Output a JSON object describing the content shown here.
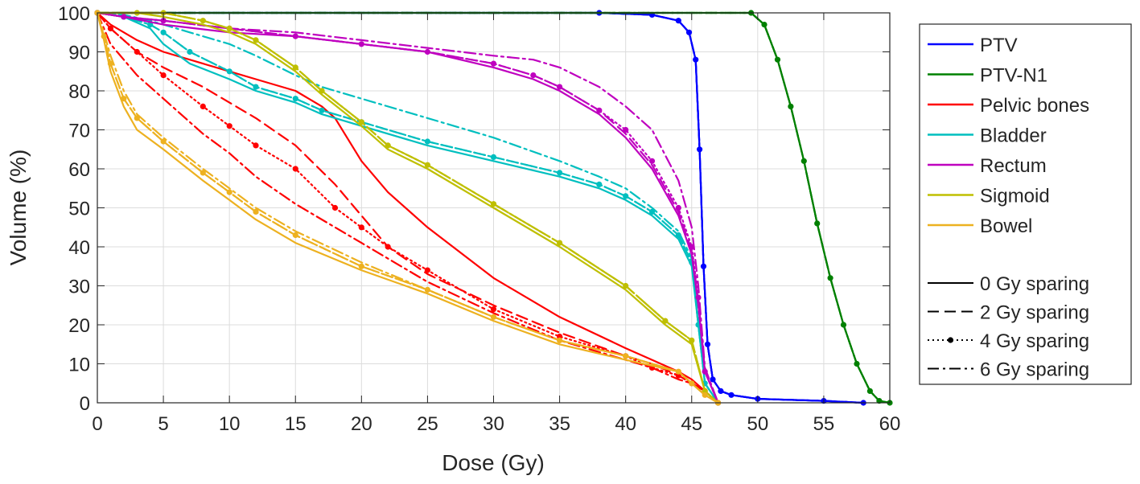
{
  "chart_data": {
    "type": "line",
    "title": "",
    "xlabel": "Dose (Gy)",
    "ylabel": "Volume (%)",
    "xlim": [
      0,
      60
    ],
    "ylim": [
      0,
      100
    ],
    "xticks": [
      0,
      5,
      10,
      15,
      20,
      25,
      30,
      35,
      40,
      45,
      50,
      55,
      60
    ],
    "yticks": [
      0,
      10,
      20,
      30,
      40,
      50,
      60,
      70,
      80,
      90,
      100
    ],
    "grid": true,
    "legend_position": "outside-right",
    "structures": [
      {
        "name": "PTV",
        "color": "#0000FF"
      },
      {
        "name": "PTV-N1",
        "color": "#008000"
      },
      {
        "name": "Pelvic bones",
        "color": "#FF0000"
      },
      {
        "name": "Bladder",
        "color": "#00BFBF"
      },
      {
        "name": "Rectum",
        "color": "#BF00BF"
      },
      {
        "name": "Sigmoid",
        "color": "#BFBF00"
      },
      {
        "name": "Bowel",
        "color": "#EDB120"
      }
    ],
    "sparing_styles": [
      {
        "name": "0 Gy sparing",
        "style": "solid"
      },
      {
        "name": "2 Gy sparing",
        "style": "dashed"
      },
      {
        "name": "4 Gy sparing",
        "style": "dotted-marker"
      },
      {
        "name": "6 Gy sparing",
        "style": "dashdot"
      }
    ],
    "series": [
      {
        "structure": "PTV",
        "sparing": "0 Gy sparing",
        "x": [
          0,
          38,
          42,
          44,
          44.8,
          45.3,
          45.6,
          45.9,
          46.2,
          46.6,
          47.2,
          48,
          50,
          55,
          58
        ],
        "y": [
          100,
          100,
          99.5,
          98,
          95,
          88,
          65,
          35,
          15,
          6,
          3,
          2,
          1,
          0.5,
          0
        ]
      },
      {
        "structure": "PTV",
        "sparing": "2 Gy sparing",
        "x": [
          0,
          38,
          42,
          44,
          44.8,
          45.3,
          45.6,
          45.9,
          46.2,
          46.6,
          47.2,
          48,
          50,
          55,
          58
        ],
        "y": [
          100,
          100,
          99.5,
          98,
          95,
          88,
          65,
          35,
          15,
          6,
          3,
          2,
          1,
          0.5,
          0
        ]
      },
      {
        "structure": "PTV",
        "sparing": "4 Gy sparing",
        "x": [
          0,
          38,
          42,
          44,
          44.8,
          45.3,
          45.6,
          45.9,
          46.2,
          46.6,
          47.2,
          48,
          50,
          55,
          58
        ],
        "y": [
          100,
          100,
          99.5,
          98,
          95,
          88,
          65,
          35,
          15,
          6,
          3,
          2,
          1,
          0.5,
          0
        ]
      },
      {
        "structure": "PTV",
        "sparing": "6 Gy sparing",
        "x": [
          0,
          38,
          42,
          44,
          44.8,
          45.3,
          45.6,
          45.9,
          46.2,
          46.6,
          47.2,
          48,
          50,
          55,
          58
        ],
        "y": [
          100,
          100,
          99.5,
          98,
          95,
          88,
          65,
          35,
          15,
          6,
          3,
          2,
          1,
          0.5,
          0
        ]
      },
      {
        "structure": "PTV-N1",
        "sparing": "0 Gy sparing",
        "x": [
          0,
          49.5,
          50.5,
          51.5,
          52.5,
          53.5,
          54.5,
          55.5,
          56.5,
          57.5,
          58.5,
          59.2,
          60
        ],
        "y": [
          100,
          100,
          97,
          88,
          76,
          62,
          46,
          32,
          20,
          10,
          3,
          0.5,
          0
        ]
      },
      {
        "structure": "PTV-N1",
        "sparing": "2 Gy sparing",
        "x": [
          0,
          49.5,
          50.5,
          51.5,
          52.5,
          53.5,
          54.5,
          55.5,
          56.5,
          57.5,
          58.5,
          59.2,
          60
        ],
        "y": [
          100,
          100,
          97,
          88,
          76,
          62,
          46,
          32,
          20,
          10,
          3,
          0.5,
          0
        ]
      },
      {
        "structure": "PTV-N1",
        "sparing": "4 Gy sparing",
        "x": [
          0,
          49.5,
          50.5,
          51.5,
          52.5,
          53.5,
          54.5,
          55.5,
          56.5,
          57.5,
          58.5,
          59.2,
          60
        ],
        "y": [
          100,
          100,
          97,
          88,
          76,
          62,
          46,
          32,
          20,
          10,
          3,
          0.5,
          0
        ]
      },
      {
        "structure": "PTV-N1",
        "sparing": "6 Gy sparing",
        "x": [
          0,
          49.5,
          50.5,
          51.5,
          52.5,
          53.5,
          54.5,
          55.5,
          56.5,
          57.5,
          58.5,
          59.2,
          60
        ],
        "y": [
          100,
          100,
          97,
          88,
          76,
          62,
          46,
          32,
          20,
          10,
          3,
          0.5,
          0
        ]
      },
      {
        "structure": "Pelvic bones",
        "sparing": "0 Gy sparing",
        "x": [
          0,
          1,
          3,
          5,
          8,
          10,
          12,
          15,
          17,
          18,
          20,
          22,
          25,
          30,
          35,
          40,
          42,
          44,
          45,
          46,
          47
        ],
        "y": [
          100,
          97,
          93,
          90,
          87,
          85,
          83,
          80,
          76,
          73,
          62,
          54,
          45,
          32,
          22,
          14,
          11,
          8,
          6,
          3,
          0
        ]
      },
      {
        "structure": "Pelvic bones",
        "sparing": "2 Gy sparing",
        "x": [
          0,
          1,
          3,
          5,
          8,
          10,
          12,
          15,
          18,
          20,
          22,
          25,
          30,
          35,
          40,
          42,
          44,
          45,
          46,
          47
        ],
        "y": [
          100,
          96,
          90,
          86,
          81,
          77,
          73,
          66,
          56,
          48,
          40,
          33,
          25,
          18,
          12,
          10,
          7,
          5,
          3,
          0
        ]
      },
      {
        "structure": "Pelvic bones",
        "sparing": "4 Gy sparing",
        "x": [
          0,
          1,
          3,
          5,
          8,
          10,
          12,
          15,
          18,
          20,
          22,
          25,
          30,
          35,
          40,
          42,
          44,
          45,
          46,
          47
        ],
        "y": [
          100,
          96,
          90,
          84,
          76,
          71,
          66,
          60,
          50,
          45,
          40,
          34,
          24,
          17,
          12,
          9,
          7,
          5,
          3,
          0
        ]
      },
      {
        "structure": "Pelvic bones",
        "sparing": "6 Gy sparing",
        "x": [
          0,
          1,
          3,
          5,
          8,
          10,
          12,
          15,
          18,
          20,
          22,
          25,
          30,
          35,
          40,
          42,
          44,
          45,
          46,
          47
        ],
        "y": [
          100,
          92,
          84,
          78,
          69,
          64,
          58,
          51,
          45,
          41,
          37,
          31,
          23,
          16,
          11,
          9,
          6,
          5,
          3,
          0
        ]
      },
      {
        "structure": "Bladder",
        "sparing": "0 Gy sparing",
        "x": [
          0,
          2,
          4,
          5,
          7,
          10,
          12,
          15,
          17,
          20,
          25,
          30,
          35,
          38,
          40,
          42,
          44,
          45,
          45.5,
          46,
          47
        ],
        "y": [
          100,
          99,
          96,
          92,
          87,
          83,
          80,
          77,
          74,
          71,
          66,
          62,
          58,
          55,
          52,
          48,
          42,
          35,
          20,
          5,
          0
        ]
      },
      {
        "structure": "Bladder",
        "sparing": "2 Gy sparing",
        "x": [
          0,
          2,
          4,
          5,
          7,
          10,
          12,
          15,
          17,
          20,
          25,
          30,
          35,
          38,
          40,
          42,
          44,
          45,
          45.5,
          46,
          47
        ],
        "y": [
          100,
          99,
          97,
          95,
          90,
          85,
          81,
          78,
          75,
          72,
          67,
          63,
          59,
          56,
          53,
          49,
          43,
          36,
          20,
          5,
          0
        ]
      },
      {
        "structure": "Bladder",
        "sparing": "4 Gy sparing",
        "x": [
          0,
          2,
          4,
          5,
          7,
          10,
          12,
          15,
          17,
          20,
          25,
          30,
          35,
          38,
          40,
          42,
          44,
          45,
          45.5,
          46,
          47
        ],
        "y": [
          100,
          99,
          97,
          95,
          90,
          85,
          81,
          78,
          75,
          72,
          67,
          63,
          59,
          56,
          53,
          49,
          43,
          36,
          20,
          5,
          0
        ]
      },
      {
        "structure": "Bladder",
        "sparing": "6 Gy sparing",
        "x": [
          0,
          2,
          4,
          5,
          7,
          10,
          12,
          15,
          17,
          20,
          25,
          30,
          35,
          38,
          40,
          42,
          44,
          45,
          45.5,
          46,
          47
        ],
        "y": [
          100,
          99.5,
          98,
          97,
          95,
          92,
          89,
          84,
          81,
          78,
          73,
          68,
          62,
          58,
          55,
          50,
          44,
          37,
          21,
          5,
          0
        ]
      },
      {
        "structure": "Rectum",
        "sparing": "0 Gy sparing",
        "x": [
          0,
          2,
          5,
          10,
          15,
          20,
          25,
          30,
          33,
          35,
          38,
          40,
          42,
          44,
          45,
          45.5,
          46,
          47
        ],
        "y": [
          100,
          99,
          97,
          95,
          94,
          92,
          90,
          86,
          83,
          80,
          74,
          68,
          60,
          48,
          38,
          25,
          8,
          0
        ]
      },
      {
        "structure": "Rectum",
        "sparing": "2 Gy sparing",
        "x": [
          0,
          2,
          5,
          10,
          15,
          20,
          25,
          30,
          33,
          35,
          38,
          40,
          42,
          44,
          45,
          45.5,
          46,
          47
        ],
        "y": [
          100,
          99,
          98,
          96,
          94,
          92,
          90,
          87,
          84,
          81,
          75,
          69,
          61,
          49,
          39,
          26,
          8,
          0
        ]
      },
      {
        "structure": "Rectum",
        "sparing": "4 Gy sparing",
        "x": [
          0,
          2,
          5,
          10,
          15,
          20,
          25,
          30,
          33,
          35,
          38,
          40,
          42,
          44,
          45,
          45.5,
          46,
          47
        ],
        "y": [
          100,
          99,
          98,
          96,
          94,
          92,
          90,
          87,
          84,
          81,
          75,
          70,
          62,
          50,
          40,
          27,
          8,
          0
        ]
      },
      {
        "structure": "Rectum",
        "sparing": "6 Gy sparing",
        "x": [
          0,
          2,
          5,
          10,
          15,
          20,
          25,
          30,
          33,
          35,
          38,
          40,
          42,
          44,
          45,
          45.5,
          46,
          47
        ],
        "y": [
          100,
          99,
          98,
          96,
          95,
          93,
          91,
          89,
          88,
          86,
          81,
          76,
          70,
          57,
          45,
          30,
          9,
          0
        ]
      },
      {
        "structure": "Sigmoid",
        "sparing": "0 Gy sparing",
        "x": [
          0,
          3,
          5,
          8,
          10,
          12,
          15,
          17,
          20,
          22,
          25,
          30,
          35,
          40,
          43,
          45,
          46,
          47
        ],
        "y": [
          100,
          100,
          99,
          97,
          95,
          92,
          85,
          79,
          71,
          65,
          60,
          50,
          40,
          29,
          20,
          15,
          3,
          0
        ]
      },
      {
        "structure": "Sigmoid",
        "sparing": "2 Gy sparing",
        "x": [
          0,
          3,
          5,
          8,
          10,
          12,
          15,
          17,
          20,
          22,
          25,
          30,
          35,
          40,
          43,
          45,
          46,
          47
        ],
        "y": [
          100,
          100,
          100,
          98,
          96,
          93,
          86,
          80,
          72,
          66,
          61,
          51,
          41,
          30,
          21,
          16,
          3,
          0
        ]
      },
      {
        "structure": "Sigmoid",
        "sparing": "4 Gy sparing",
        "x": [
          0,
          3,
          5,
          8,
          10,
          12,
          15,
          17,
          20,
          22,
          25,
          30,
          35,
          40,
          43,
          45,
          46,
          47
        ],
        "y": [
          100,
          100,
          100,
          98,
          96,
          93,
          86,
          80,
          72,
          66,
          61,
          51,
          41,
          30,
          21,
          16,
          3,
          0
        ]
      },
      {
        "structure": "Sigmoid",
        "sparing": "6 Gy sparing",
        "x": [
          0,
          3,
          5,
          8,
          10,
          12,
          15,
          17,
          20,
          22,
          25,
          30,
          35,
          40,
          43,
          45,
          46,
          47
        ],
        "y": [
          100,
          100,
          100,
          98,
          96,
          93,
          86,
          80,
          72,
          66,
          61,
          51,
          41,
          30,
          21,
          16,
          3,
          0
        ]
      },
      {
        "structure": "Bowel",
        "sparing": "0 Gy sparing",
        "x": [
          0,
          0.5,
          1,
          2,
          3,
          5,
          8,
          10,
          12,
          15,
          20,
          25,
          30,
          35,
          40,
          44,
          45,
          46,
          47
        ],
        "y": [
          100,
          93,
          85,
          76,
          70,
          65,
          57,
          52,
          47,
          41,
          34,
          28,
          21,
          15,
          11,
          8,
          5,
          2,
          0
        ]
      },
      {
        "structure": "Bowel",
        "sparing": "2 Gy sparing",
        "x": [
          0,
          0.5,
          1,
          2,
          3,
          5,
          8,
          10,
          12,
          15,
          20,
          25,
          30,
          35,
          40,
          44,
          45,
          46,
          47
        ],
        "y": [
          100,
          94,
          87,
          78,
          73,
          67,
          59,
          54,
          49,
          43,
          35,
          29,
          22,
          16,
          12,
          8,
          5,
          2,
          0
        ]
      },
      {
        "structure": "Bowel",
        "sparing": "4 Gy sparing",
        "x": [
          0,
          0.5,
          1,
          2,
          3,
          5,
          8,
          10,
          12,
          15,
          20,
          25,
          30,
          35,
          40,
          44,
          45,
          46,
          47
        ],
        "y": [
          100,
          94,
          87,
          78,
          73,
          67,
          59,
          54,
          49,
          43,
          35,
          29,
          22,
          16,
          12,
          8,
          5,
          2,
          0
        ]
      },
      {
        "structure": "Bowel",
        "sparing": "6 Gy sparing",
        "x": [
          0,
          0.5,
          1,
          2,
          3,
          5,
          8,
          10,
          12,
          15,
          20,
          25,
          30,
          35,
          40,
          44,
          45,
          46,
          47
        ],
        "y": [
          100,
          95,
          89,
          80,
          74,
          68,
          60,
          55,
          50,
          44,
          36,
          29,
          22,
          16,
          12,
          8,
          5,
          2,
          0
        ]
      }
    ]
  }
}
